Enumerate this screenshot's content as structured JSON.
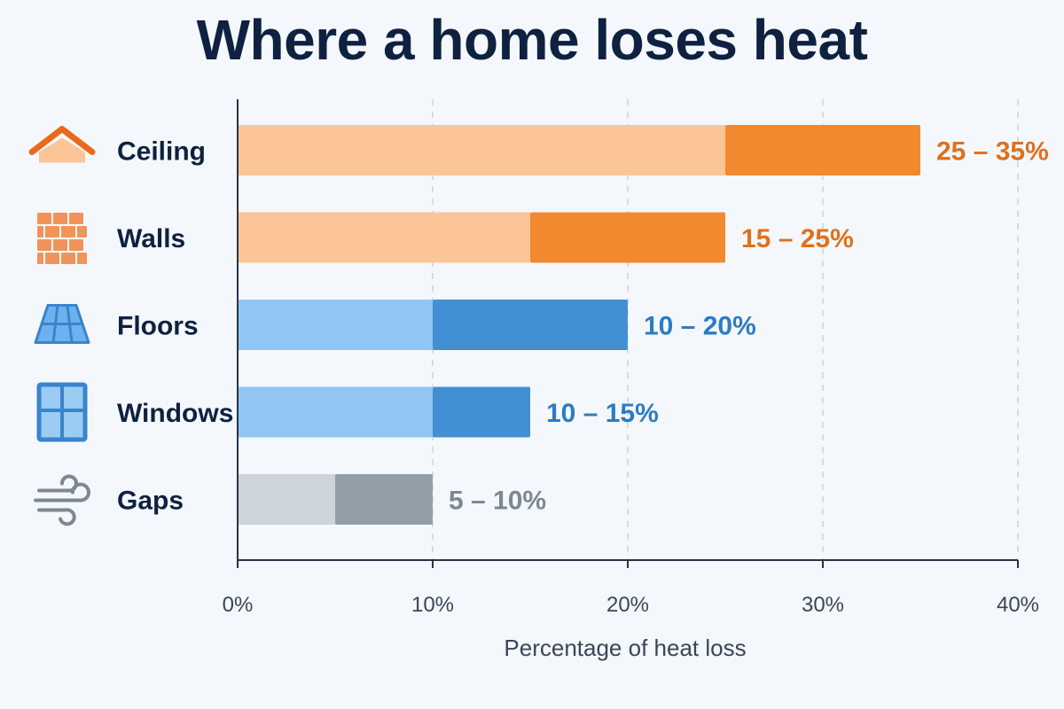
{
  "title": "Where a home loses heat",
  "colors": {
    "background": "#f4f8fc",
    "title": "#0f2140",
    "grid": "#c9d3de",
    "axis": "#2b3445",
    "orange_light": "#fcc597",
    "orange_dark": "#f2892e",
    "orange_text": "#e0701c",
    "blue_light": "#91c6f4",
    "blue_dark": "#4290d3",
    "blue_text": "#2c7cc4",
    "gray_light": "#cdd4dc",
    "gray_dark": "#939ea9",
    "gray_text": "#7d8893"
  },
  "chart_data": {
    "type": "bar",
    "orientation": "horizontal",
    "title": "Where a home loses heat",
    "xlabel": "Percentage of heat loss",
    "ylabel": "",
    "xlim": [
      0,
      40
    ],
    "x_ticks": [
      0,
      10,
      20,
      30,
      40
    ],
    "x_tick_labels": [
      "0%",
      "10%",
      "20%",
      "30%",
      "40%"
    ],
    "grid": "vertical dashed",
    "categories": [
      "Ceiling",
      "Walls",
      "Floors",
      "Windows",
      "Gaps"
    ],
    "ranges": [
      {
        "category": "Ceiling",
        "low": 25,
        "high": 35,
        "label": "25 – 35%",
        "icon": "house-roof-icon",
        "color_group": "orange"
      },
      {
        "category": "Walls",
        "low": 15,
        "high": 25,
        "label": "15 – 25%",
        "icon": "brick-wall-icon",
        "color_group": "orange"
      },
      {
        "category": "Floors",
        "low": 10,
        "high": 20,
        "label": "10 – 20%",
        "icon": "floor-tiles-icon",
        "color_group": "blue"
      },
      {
        "category": "Windows",
        "low": 10,
        "high": 15,
        "label": "10 – 15%",
        "icon": "window-icon",
        "color_group": "blue"
      },
      {
        "category": "Gaps",
        "low": 5,
        "high": 10,
        "label": "5 – 10%",
        "icon": "wind-draft-icon",
        "color_group": "gray"
      }
    ]
  }
}
